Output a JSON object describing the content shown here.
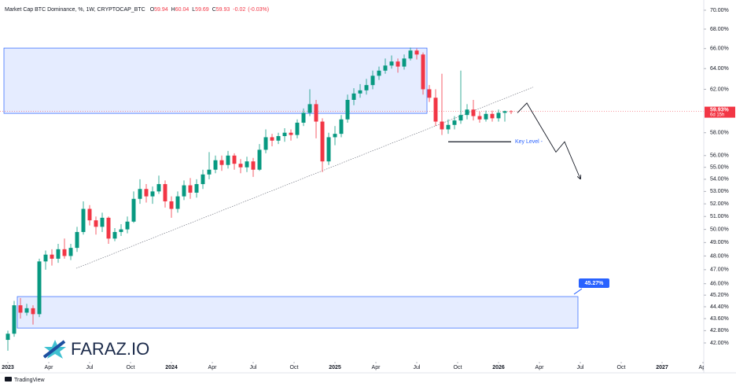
{
  "chart_data": {
    "type": "candlestick",
    "title": "Market Cap BTC Dominance, %, 1W, CRYPTOCAP_BTC",
    "legend": [
      {
        "label": "O",
        "value": 59.94
      },
      {
        "label": "H",
        "value": 60.04
      },
      {
        "label": "L",
        "value": 59.69
      },
      {
        "label": "C",
        "value": 59.93
      }
    ],
    "change": {
      "value": -0.02,
      "percent": "(-0.03%)"
    },
    "up_color": "#089981",
    "down_color": "#f23645",
    "log_scale": true,
    "grid": false,
    "xlim": [
      -2.5,
      221.25
    ],
    "ylim": [
      40.8,
      70.68
    ],
    "xticks": [
      {
        "value": 0,
        "label": "2023"
      },
      {
        "value": 13,
        "label": "Apr"
      },
      {
        "value": 26,
        "label": "Jul"
      },
      {
        "value": 39,
        "label": "Oct"
      },
      {
        "value": 52,
        "label": "2024"
      },
      {
        "value": 65,
        "label": "Apr"
      },
      {
        "value": 78,
        "label": "Jul"
      },
      {
        "value": 91,
        "label": "Oct"
      },
      {
        "value": 104,
        "label": "2025"
      },
      {
        "value": 117,
        "label": "Apr"
      },
      {
        "value": 130,
        "label": "Jul"
      },
      {
        "value": 143,
        "label": "Oct"
      },
      {
        "value": 156,
        "label": "2026"
      },
      {
        "value": 169,
        "label": "Apr"
      },
      {
        "value": 182,
        "label": "Jul"
      },
      {
        "value": 195,
        "label": "Oct"
      },
      {
        "value": 208,
        "label": "2027"
      },
      {
        "value": 221,
        "label": "Apr"
      }
    ],
    "yticks": [
      {
        "value": 70,
        "label": "70.00%"
      },
      {
        "value": 68,
        "label": "68.00%"
      },
      {
        "value": 66,
        "label": "66.00%"
      },
      {
        "value": 64,
        "label": "64.00%"
      },
      {
        "value": 62,
        "label": "62.00%"
      },
      {
        "value": 58,
        "label": "58.00%"
      },
      {
        "value": 56,
        "label": "56.00%"
      },
      {
        "value": 55,
        "label": "55.00%"
      },
      {
        "value": 54,
        "label": "54.00%"
      },
      {
        "value": 53,
        "label": "53.00%"
      },
      {
        "value": 52,
        "label": "52.00%"
      },
      {
        "value": 51,
        "label": "51.00%"
      },
      {
        "value": 50,
        "label": "50.00%"
      },
      {
        "value": 49,
        "label": "49.00%"
      },
      {
        "value": 48,
        "label": "48.00%"
      },
      {
        "value": 47,
        "label": "47.00%"
      },
      {
        "value": 46,
        "label": "46.00%"
      },
      {
        "value": 45.2,
        "label": "45.20%"
      },
      {
        "value": 44.4,
        "label": "44.40%"
      },
      {
        "value": 43.6,
        "label": "43.60%"
      },
      {
        "value": 42.8,
        "label": "42.80%"
      },
      {
        "value": 42,
        "label": "42.00%"
      }
    ],
    "x": [
      0,
      2,
      4,
      6,
      8,
      10,
      12,
      14,
      16,
      18,
      20,
      22,
      24,
      26,
      28,
      30,
      32,
      34,
      36,
      38,
      40,
      42,
      44,
      46,
      48,
      50,
      52,
      54,
      56,
      58,
      60,
      62,
      64,
      66,
      68,
      70,
      72,
      74,
      76,
      78,
      80,
      82,
      84,
      86,
      88,
      90,
      92,
      94,
      96,
      98,
      100,
      102,
      104,
      106,
      108,
      110,
      112,
      114,
      116,
      118,
      120,
      122,
      124,
      126,
      128,
      130,
      132,
      134,
      136,
      138,
      140,
      142,
      144,
      146,
      148,
      150,
      152,
      154,
      156,
      158,
      160
    ],
    "open": [
      42.2,
      42.6,
      44.5,
      44.0,
      44.3,
      43.9,
      47.6,
      48.1,
      47.8,
      48.5,
      48.0,
      48.6,
      49.8,
      51.6,
      50.7,
      50.2,
      50.9,
      49.3,
      49.8,
      50.0,
      50.6,
      52.4,
      53.2,
      52.6,
      53.0,
      53.6,
      52.2,
      51.6,
      52.6,
      53.5,
      52.9,
      53.6,
      54.4,
      54.8,
      55.6,
      55.2,
      56.0,
      55.3,
      55.0,
      55.5,
      54.8,
      56.5,
      57.6,
      57.3,
      57.7,
      58.0,
      57.8,
      58.9,
      59.8,
      60.6,
      59.0,
      55.5,
      57.6,
      57.9,
      59.2,
      61.0,
      61.6,
      61.9,
      62.4,
      63.3,
      63.8,
      64.3,
      64.7,
      64.2,
      65.0,
      65.8,
      65.4,
      62.0,
      61.2,
      59.0,
      58.3,
      58.7,
      59.1,
      59.6,
      60.1,
      59.5,
      59.2,
      59.7,
      59.3,
      59.8,
      59.94
    ],
    "high": [
      42.8,
      44.8,
      45.0,
      44.6,
      44.5,
      47.8,
      48.4,
      48.5,
      48.9,
      49.3,
      48.9,
      50.2,
      52.2,
      51.9,
      51.0,
      51.3,
      51.0,
      50.1,
      50.4,
      51.0,
      53.0,
      54.0,
      53.6,
      53.4,
      54.3,
      53.9,
      52.6,
      53.0,
      53.9,
      54.1,
      54.0,
      54.8,
      56.3,
      56.0,
      56.0,
      56.4,
      56.2,
      55.7,
      55.9,
      55.8,
      57.0,
      58.3,
      57.9,
      58.0,
      58.4,
      58.3,
      59.2,
      60.2,
      62.0,
      61.0,
      59.3,
      58.0,
      58.6,
      59.6,
      61.5,
      62.1,
      62.5,
      63.0,
      63.8,
      64.2,
      65.0,
      65.3,
      65.0,
      65.4,
      66.1,
      66.0,
      65.6,
      62.4,
      62.0,
      63.5,
      59.2,
      59.5,
      63.8,
      60.6,
      61.0,
      59.9,
      60.0,
      60.0,
      60.1,
      60.0,
      60.04
    ],
    "low": [
      41.5,
      42.4,
      43.6,
      43.8,
      43.2,
      43.7,
      47.0,
      47.3,
      47.5,
      47.8,
      47.7,
      48.3,
      49.6,
      50.3,
      49.6,
      49.8,
      48.9,
      49.1,
      49.5,
      49.7,
      50.5,
      52.0,
      52.1,
      52.0,
      52.8,
      51.7,
      50.9,
      51.3,
      52.3,
      52.4,
      52.5,
      53.2,
      54.0,
      54.5,
      54.7,
      54.9,
      54.8,
      54.5,
      54.6,
      54.2,
      54.7,
      56.2,
      56.8,
      57.0,
      57.2,
      57.3,
      57.5,
      58.6,
      59.5,
      57.5,
      54.6,
      55.2,
      56.9,
      57.6,
      58.9,
      60.5,
      61.2,
      61.5,
      62.0,
      62.9,
      63.5,
      64.0,
      63.6,
      63.9,
      64.8,
      64.9,
      61.5,
      60.8,
      58.6,
      57.8,
      57.9,
      58.3,
      58.8,
      59.2,
      59.1,
      58.9,
      59.0,
      59.0,
      59.0,
      59.0,
      59.69
    ],
    "close": [
      42.6,
      44.5,
      44.0,
      44.3,
      43.9,
      47.6,
      48.1,
      47.8,
      48.5,
      48.0,
      48.6,
      49.8,
      51.6,
      50.7,
      50.2,
      50.9,
      49.3,
      49.8,
      50.0,
      50.6,
      52.4,
      53.2,
      52.6,
      53.0,
      53.6,
      52.2,
      51.6,
      52.6,
      53.5,
      52.9,
      53.6,
      54.4,
      54.8,
      55.6,
      55.2,
      56.0,
      55.3,
      55.0,
      55.5,
      54.8,
      56.5,
      57.6,
      57.3,
      57.7,
      58.0,
      57.8,
      58.9,
      59.8,
      60.6,
      59.0,
      55.5,
      57.6,
      57.9,
      59.2,
      61.0,
      61.6,
      61.9,
      62.4,
      63.3,
      63.8,
      64.3,
      64.7,
      64.2,
      65.0,
      65.8,
      65.4,
      62.0,
      61.2,
      59.0,
      58.3,
      58.7,
      59.1,
      59.6,
      60.1,
      59.5,
      59.2,
      59.7,
      59.3,
      59.8,
      59.95,
      59.93
    ],
    "last_price": {
      "value": 59.93,
      "label": "59.93%",
      "countdown": "6d 15h"
    },
    "zones": [
      {
        "x": [
          -1.25,
          133.25
        ],
        "y": [
          66.05,
          59.75
        ]
      },
      {
        "x": [
          3,
          181.25
        ],
        "y": [
          45.1,
          42.97
        ]
      }
    ],
    "trendline": {
      "x": [
        21.75,
        167
      ],
      "y": [
        47.1,
        62.2
      ]
    },
    "key_level": {
      "label": "Key Level -",
      "x": [
        140,
        160
      ],
      "y": 57.2
    },
    "projection": {
      "x": [
        162,
        165,
        174.25,
        177,
        182
      ],
      "y": [
        59.8,
        60.7,
        56.3,
        57.2,
        54.05
      ]
    },
    "callout": {
      "label": "45.27%",
      "x": 181.25,
      "y": 45.1
    }
  },
  "branding": {
    "logo": "FARAZ.IO",
    "footer": "TradingView"
  }
}
